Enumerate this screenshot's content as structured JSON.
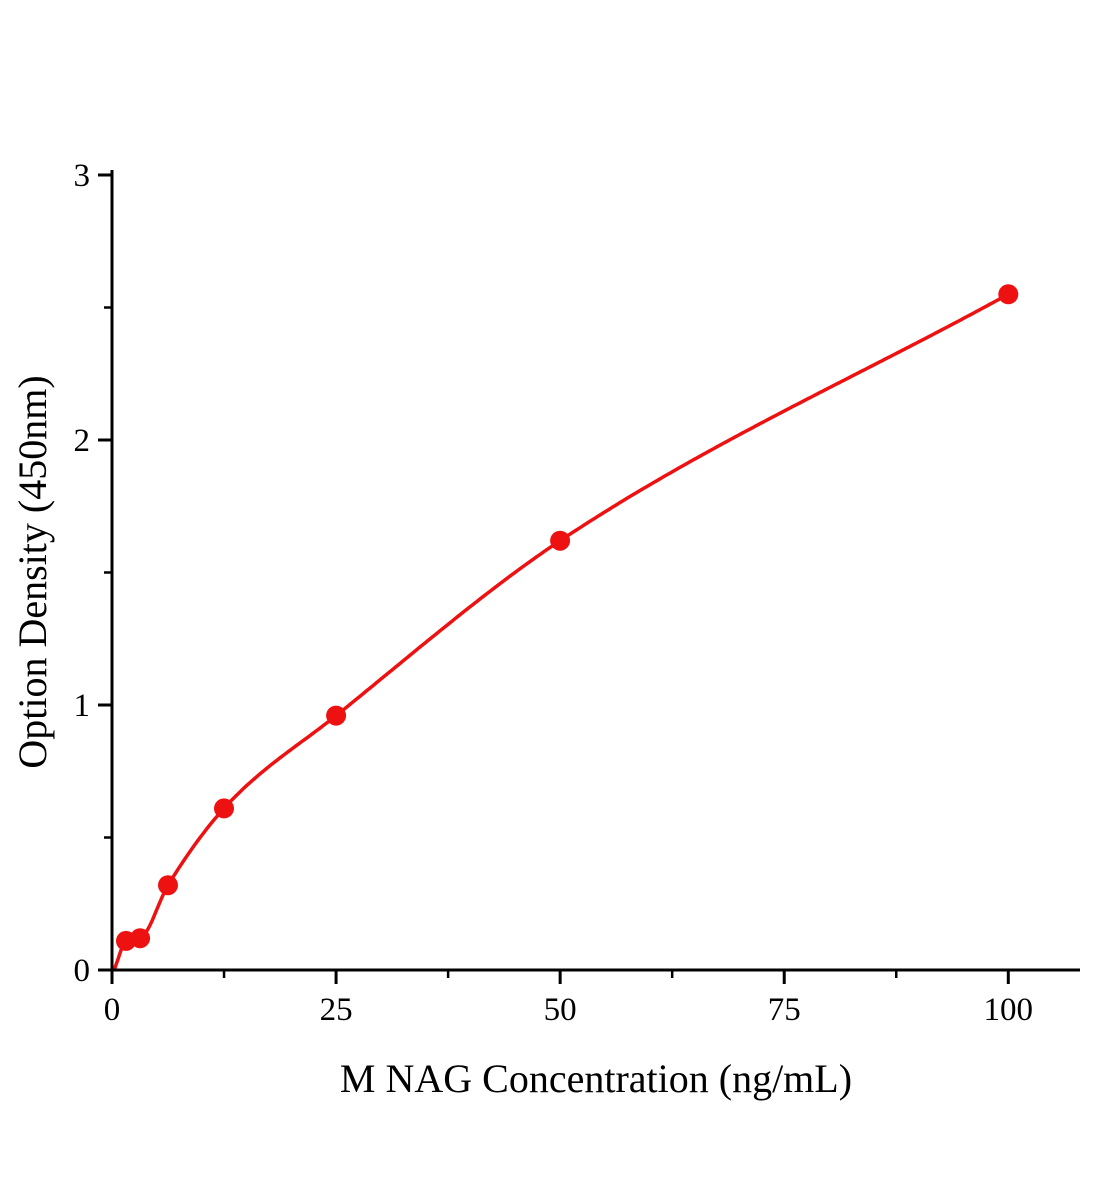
{
  "chart_data": {
    "type": "scatter",
    "title": "",
    "xlabel": "M NAG Concentration（ng/mL）",
    "ylabel": "Option Density（450nm）",
    "x": [
      1.56,
      3.13,
      6.25,
      12.5,
      25,
      50,
      100
    ],
    "y": [
      0.11,
      0.12,
      0.32,
      0.61,
      0.96,
      1.62,
      2.55
    ],
    "fit_line": true,
    "curve_through_origin": true,
    "xlim": [
      0,
      108
    ],
    "ylim": [
      0,
      3
    ],
    "xticks": [
      0,
      25,
      50,
      75,
      100
    ],
    "yticks": [
      0,
      1,
      2,
      3
    ],
    "x_minor_ticks": [
      12.5,
      37.5,
      62.5,
      87.5
    ],
    "y_minor_ticks": [
      0.5,
      1.5,
      2.5
    ],
    "grid": false,
    "legend": null,
    "colors": {
      "curve": "#ee1111",
      "marker": "#ee1111",
      "axis": "#000000",
      "text": "#000000",
      "background": "#ffffff"
    }
  }
}
